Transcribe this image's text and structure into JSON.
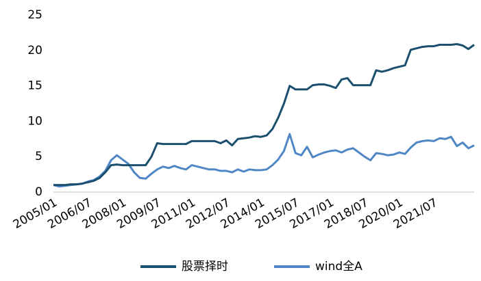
{
  "chart_data": {
    "type": "line",
    "categories": [
      "2005/01",
      null,
      null,
      null,
      null,
      null,
      "2006/07",
      null,
      null,
      null,
      null,
      null,
      "2008/01",
      null,
      null,
      null,
      null,
      null,
      "2009/07",
      null,
      null,
      null,
      null,
      null,
      "2011/01",
      null,
      null,
      null,
      null,
      null,
      "2012/07",
      null,
      null,
      null,
      null,
      null,
      "2014/01",
      null,
      null,
      null,
      null,
      null,
      "2015/07",
      null,
      null,
      null,
      null,
      null,
      "2017/01",
      null,
      null,
      null,
      null,
      null,
      "2018/07",
      null,
      null,
      null,
      null,
      null,
      "2020/01",
      null,
      null,
      null,
      null,
      null,
      "2021/07",
      null,
      null,
      null,
      null,
      null,
      null,
      null
    ],
    "series": [
      {
        "name": "股票择时",
        "color": "#1b4f6e",
        "values": [
          1.0,
          1.0,
          1.0,
          1.1,
          1.1,
          1.2,
          1.4,
          1.6,
          2.0,
          2.8,
          3.8,
          3.9,
          3.8,
          3.8,
          3.8,
          3.8,
          3.8,
          5.0,
          6.9,
          6.8,
          6.8,
          6.8,
          6.8,
          6.8,
          7.2,
          7.2,
          7.2,
          7.2,
          7.2,
          6.9,
          7.3,
          6.6,
          7.5,
          7.6,
          7.7,
          7.9,
          7.8,
          8.0,
          8.9,
          10.5,
          12.5,
          15.0,
          14.5,
          14.5,
          14.5,
          15.1,
          15.2,
          15.2,
          15.0,
          14.7,
          15.9,
          16.1,
          15.1,
          15.1,
          15.1,
          15.1,
          17.2,
          17.0,
          17.2,
          17.5,
          17.7,
          17.9,
          20.1,
          20.3,
          20.5,
          20.6,
          20.6,
          20.8,
          20.8,
          20.8,
          20.9,
          20.7,
          20.2,
          20.8
        ]
      },
      {
        "name": "wind全A",
        "color": "#4f86c6",
        "values": [
          1.0,
          0.8,
          0.9,
          1.0,
          1.1,
          1.2,
          1.5,
          1.7,
          2.2,
          3.0,
          4.5,
          5.2,
          4.6,
          4.0,
          2.8,
          2.0,
          1.9,
          2.6,
          3.2,
          3.6,
          3.4,
          3.7,
          3.4,
          3.2,
          3.8,
          3.6,
          3.4,
          3.2,
          3.2,
          3.0,
          3.0,
          2.8,
          3.2,
          2.9,
          3.2,
          3.1,
          3.1,
          3.2,
          3.8,
          4.6,
          5.8,
          8.2,
          5.5,
          5.2,
          6.4,
          4.9,
          5.3,
          5.6,
          5.8,
          5.9,
          5.6,
          6.0,
          6.2,
          5.6,
          5.0,
          4.5,
          5.5,
          5.4,
          5.2,
          5.3,
          5.6,
          5.4,
          6.3,
          7.0,
          7.2,
          7.3,
          7.2,
          7.6,
          7.5,
          7.8,
          6.5,
          7.0,
          6.2,
          6.6
        ]
      }
    ],
    "ylim": [
      0,
      25
    ],
    "yticks": [
      0,
      5,
      10,
      15,
      20,
      25
    ],
    "grid": false,
    "legend": "bottom"
  }
}
